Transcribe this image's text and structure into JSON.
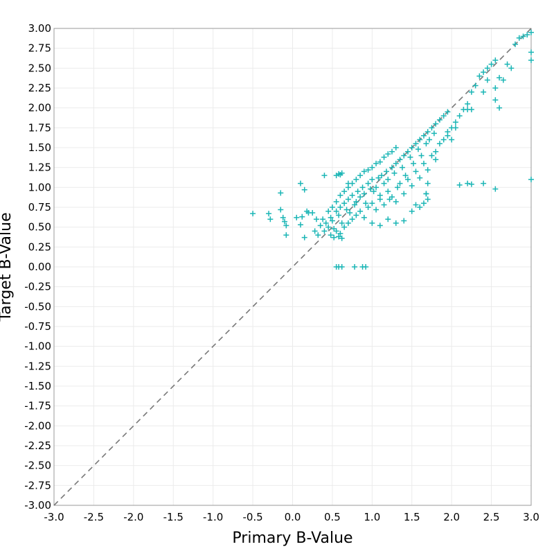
{
  "chart_data": {
    "type": "scatter",
    "title": "",
    "xlabel": "Primary B-Value",
    "ylabel": "Target B-Value",
    "xlim": [
      -3.0,
      3.0
    ],
    "ylim": [
      -3.0,
      3.0
    ],
    "grid": true,
    "x_ticks": [
      "-3.0",
      "-2.5",
      "-2.0",
      "-1.5",
      "-1.0",
      "-0.5",
      "0.0",
      "0.5",
      "1.0",
      "1.5",
      "2.0",
      "2.5",
      "3.0"
    ],
    "y_ticks": [
      "3.00",
      "2.75",
      "2.50",
      "2.25",
      "2.00",
      "1.75",
      "1.50",
      "1.25",
      "1.00",
      "0.75",
      "0.50",
      "0.25",
      "0.00",
      "-0.25",
      "-0.50",
      "-0.75",
      "-1.00",
      "-1.25",
      "-1.50",
      "-1.75",
      "-2.00",
      "-2.25",
      "-2.50",
      "-2.75",
      "-3.00"
    ],
    "reference_line": {
      "style": "dashed",
      "from": [
        -3.0,
        -3.0
      ],
      "to": [
        3.0,
        3.0
      ],
      "color": "#777777"
    },
    "series": [
      {
        "name": "points",
        "marker": "plus",
        "color": "#1ab5b5",
        "points": [
          [
            -0.5,
            0.67
          ],
          [
            -0.3,
            0.67
          ],
          [
            -0.28,
            0.6
          ],
          [
            -0.15,
            0.72
          ],
          [
            -0.12,
            0.62
          ],
          [
            -0.1,
            0.57
          ],
          [
            -0.08,
            0.52
          ],
          [
            -0.15,
            0.93
          ],
          [
            -0.08,
            0.4
          ],
          [
            0.05,
            0.62
          ],
          [
            0.1,
            0.53
          ],
          [
            0.12,
            0.63
          ],
          [
            0.15,
            0.37
          ],
          [
            0.1,
            1.05
          ],
          [
            0.15,
            0.97
          ],
          [
            0.18,
            0.7
          ],
          [
            0.2,
            0.68
          ],
          [
            0.25,
            0.68
          ],
          [
            0.28,
            0.45
          ],
          [
            0.3,
            0.6
          ],
          [
            0.32,
            0.4
          ],
          [
            0.35,
            0.52
          ],
          [
            0.38,
            0.6
          ],
          [
            0.4,
            0.45
          ],
          [
            0.42,
            0.55
          ],
          [
            0.45,
            0.5
          ],
          [
            0.48,
            0.62
          ],
          [
            0.5,
            0.58
          ],
          [
            0.52,
            0.48
          ],
          [
            0.55,
            0.7
          ],
          [
            0.58,
            0.65
          ],
          [
            0.6,
            0.75
          ],
          [
            0.62,
            0.55
          ],
          [
            0.65,
            0.8
          ],
          [
            0.68,
            0.72
          ],
          [
            0.7,
            0.85
          ],
          [
            0.72,
            0.68
          ],
          [
            0.75,
            0.9
          ],
          [
            0.78,
            0.78
          ],
          [
            0.8,
            0.82
          ],
          [
            0.82,
            0.95
          ],
          [
            0.85,
            0.88
          ],
          [
            0.88,
            1.0
          ],
          [
            0.9,
            0.92
          ],
          [
            0.92,
            0.8
          ],
          [
            0.95,
            1.05
          ],
          [
            0.98,
            0.98
          ],
          [
            1.0,
            1.1
          ],
          [
            1.02,
            0.95
          ],
          [
            1.05,
            1.0
          ],
          [
            1.08,
            1.12
          ],
          [
            1.1,
            0.9
          ],
          [
            1.12,
            1.15
          ],
          [
            1.15,
            1.05
          ],
          [
            1.18,
            1.2
          ],
          [
            1.2,
            1.1
          ],
          [
            1.22,
            0.85
          ],
          [
            1.25,
            1.25
          ],
          [
            1.28,
            1.18
          ],
          [
            1.3,
            1.3
          ],
          [
            1.32,
            1.0
          ],
          [
            1.35,
            1.35
          ],
          [
            1.38,
            1.25
          ],
          [
            1.4,
            1.4
          ],
          [
            1.42,
            1.15
          ],
          [
            1.45,
            1.45
          ],
          [
            1.48,
            1.38
          ],
          [
            1.5,
            1.5
          ],
          [
            1.52,
            1.3
          ],
          [
            1.55,
            1.55
          ],
          [
            1.58,
            1.48
          ],
          [
            1.6,
            1.6
          ],
          [
            1.62,
            1.4
          ],
          [
            1.65,
            1.65
          ],
          [
            1.68,
            1.55
          ],
          [
            1.7,
            1.7
          ],
          [
            1.72,
            1.6
          ],
          [
            1.75,
            1.75
          ],
          [
            1.78,
            1.68
          ],
          [
            1.8,
            1.8
          ],
          [
            1.85,
            1.85
          ],
          [
            1.9,
            1.9
          ],
          [
            1.95,
            1.95
          ],
          [
            0.55,
            0.45
          ],
          [
            0.6,
            0.42
          ],
          [
            0.65,
            0.5
          ],
          [
            0.7,
            0.55
          ],
          [
            0.75,
            0.6
          ],
          [
            0.8,
            0.65
          ],
          [
            0.85,
            0.7
          ],
          [
            0.9,
            0.62
          ],
          [
            0.95,
            0.75
          ],
          [
            1.0,
            0.8
          ],
          [
            1.05,
            0.72
          ],
          [
            1.1,
            0.85
          ],
          [
            1.15,
            0.78
          ],
          [
            1.2,
            0.95
          ],
          [
            1.25,
            0.88
          ],
          [
            1.3,
            0.82
          ],
          [
            1.35,
            1.05
          ],
          [
            1.4,
            0.92
          ],
          [
            1.45,
            1.1
          ],
          [
            1.5,
            1.02
          ],
          [
            1.55,
            1.2
          ],
          [
            1.6,
            1.12
          ],
          [
            1.65,
            1.3
          ],
          [
            1.7,
            1.22
          ],
          [
            1.75,
            1.4
          ],
          [
            1.8,
            1.35
          ],
          [
            0.45,
            0.7
          ],
          [
            0.5,
            0.75
          ],
          [
            0.55,
            0.82
          ],
          [
            0.6,
            0.9
          ],
          [
            0.65,
            0.95
          ],
          [
            0.7,
            1.0
          ],
          [
            0.75,
            1.05
          ],
          [
            0.8,
            1.1
          ],
          [
            0.85,
            1.15
          ],
          [
            0.9,
            1.2
          ],
          [
            0.95,
            1.22
          ],
          [
            1.0,
            1.25
          ],
          [
            1.05,
            1.3
          ],
          [
            1.1,
            1.32
          ],
          [
            1.15,
            1.38
          ],
          [
            1.2,
            1.42
          ],
          [
            1.25,
            1.45
          ],
          [
            1.3,
            1.5
          ],
          [
            0.55,
            1.15
          ],
          [
            0.58,
            1.17
          ],
          [
            0.6,
            1.16
          ],
          [
            0.62,
            1.18
          ],
          [
            0.4,
            1.15
          ],
          [
            0.7,
            1.05
          ],
          [
            0.52,
            0.37
          ],
          [
            0.58,
            0.38
          ],
          [
            0.62,
            0.36
          ],
          [
            0.48,
            0.4
          ],
          [
            0.55,
            0.0
          ],
          [
            0.58,
            0.0
          ],
          [
            0.62,
            0.0
          ],
          [
            0.78,
            0.0
          ],
          [
            0.88,
            0.0
          ],
          [
            0.92,
            0.0
          ],
          [
            1.0,
            0.55
          ],
          [
            1.1,
            0.52
          ],
          [
            1.2,
            0.6
          ],
          [
            1.3,
            0.55
          ],
          [
            1.4,
            0.58
          ],
          [
            1.5,
            0.7
          ],
          [
            1.6,
            0.75
          ],
          [
            1.7,
            0.85
          ],
          [
            1.65,
            0.8
          ],
          [
            1.55,
            0.78
          ],
          [
            1.68,
            0.92
          ],
          [
            1.7,
            1.05
          ],
          [
            1.8,
            1.45
          ],
          [
            1.85,
            1.55
          ],
          [
            1.9,
            1.6
          ],
          [
            1.95,
            1.7
          ],
          [
            2.0,
            1.75
          ],
          [
            2.05,
            1.82
          ],
          [
            2.1,
            1.9
          ],
          [
            2.15,
            1.98
          ],
          [
            2.2,
            2.05
          ],
          [
            2.25,
            2.2
          ],
          [
            2.3,
            2.28
          ],
          [
            2.35,
            2.4
          ],
          [
            2.4,
            2.45
          ],
          [
            2.45,
            2.5
          ],
          [
            2.5,
            2.55
          ],
          [
            2.55,
            2.6
          ],
          [
            1.95,
            1.65
          ],
          [
            2.0,
            1.6
          ],
          [
            2.05,
            1.75
          ],
          [
            2.2,
            1.98
          ],
          [
            2.25,
            1.98
          ],
          [
            2.4,
            2.2
          ],
          [
            2.45,
            2.35
          ],
          [
            2.55,
            2.25
          ],
          [
            2.6,
            2.38
          ],
          [
            2.65,
            2.35
          ],
          [
            2.55,
            2.1
          ],
          [
            2.6,
            2.0
          ],
          [
            2.8,
            2.8
          ],
          [
            2.85,
            2.88
          ],
          [
            2.9,
            2.9
          ],
          [
            2.95,
            2.92
          ],
          [
            3.0,
            2.95
          ],
          [
            3.0,
            2.7
          ],
          [
            3.0,
            2.6
          ],
          [
            2.75,
            2.5
          ],
          [
            2.7,
            2.55
          ],
          [
            2.2,
            1.05
          ],
          [
            2.25,
            1.04
          ],
          [
            2.4,
            1.05
          ],
          [
            2.55,
            0.98
          ],
          [
            3.0,
            1.1
          ],
          [
            2.1,
            1.03
          ],
          [
            1.68,
            0.92
          ]
        ]
      }
    ]
  }
}
